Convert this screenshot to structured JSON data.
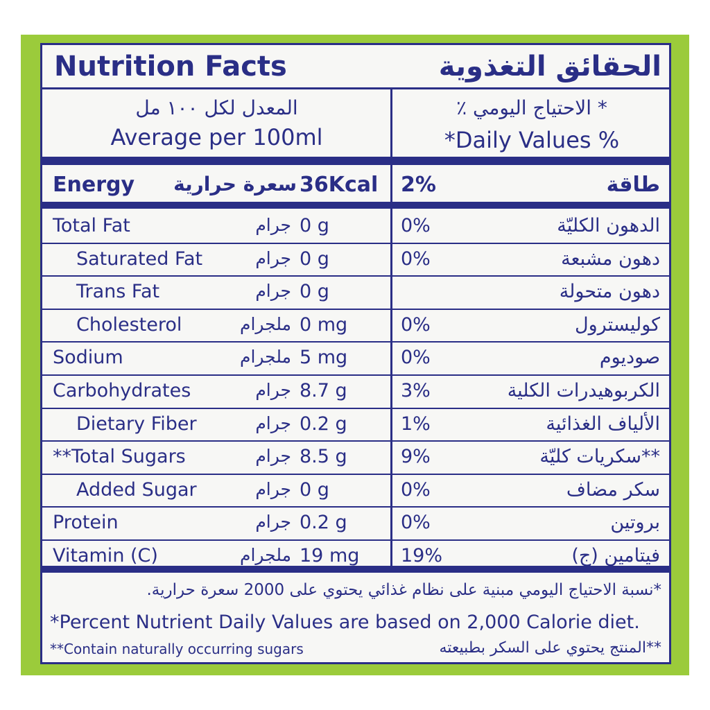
{
  "header": {
    "title_en": "Nutrition Facts",
    "title_ar": "الحقائق التغذوية"
  },
  "columns": {
    "left_ar": "المعدل لكل ١٠٠ مل",
    "left_en": "Average per 100ml",
    "right_ar": "* الاحتياج اليومي ٪",
    "right_en": "*Daily Values %"
  },
  "energy": {
    "en": "Energy",
    "unit_ar": "سعرة حرارية",
    "amount": "36Kcal",
    "dv": "2%",
    "ar": "طاقة"
  },
  "rows": [
    {
      "en": "Total Fat",
      "unit_ar": "جرام",
      "amount": "0 g",
      "dv": "0%",
      "ar": "الدهون الكليّة"
    },
    {
      "en": "Saturated Fat",
      "unit_ar": "جرام",
      "amount": "0 g",
      "dv": "0%",
      "ar": "دهون مشبعة",
      "indent": true
    },
    {
      "en": "Trans Fat",
      "unit_ar": "جرام",
      "amount": "0 g",
      "ar": "دهون متحولة",
      "indent": true
    },
    {
      "en": "Cholesterol",
      "unit_ar": "ملجرام",
      "amount": "0 mg",
      "dv": "0%",
      "ar": "كوليسترول",
      "indent": true
    },
    {
      "en": "Sodium",
      "unit_ar": "ملجرام",
      "amount": "5 mg",
      "dv": "0%",
      "ar": "صوديوم"
    },
    {
      "en": "Carbohydrates",
      "unit_ar": "جرام",
      "amount": "8.7 g",
      "dv": "3%",
      "ar": "الكربوهيدرات الكلية"
    },
    {
      "en": "Dietary Fiber",
      "unit_ar": "جرام",
      "amount": "0.2 g",
      "dv": "1%",
      "ar": "الألياف الغذائية",
      "indent": true
    },
    {
      "en": "**Total Sugars",
      "unit_ar": "جرام",
      "amount": "8.5 g",
      "dv": "9%",
      "ar": "**سكريات كليّة"
    },
    {
      "en": "Added Sugar",
      "unit_ar": "جرام",
      "amount": "0 g",
      "dv": "0%",
      "ar": "سكر مضاف",
      "indent": true
    },
    {
      "en": "Protein",
      "unit_ar": "جرام",
      "amount": "0.2 g",
      "dv": "0%",
      "ar": "بروتين"
    },
    {
      "en": "Vitamin (C)",
      "unit_ar": "ملجرام",
      "amount": "19 mg",
      "dv": "19%",
      "ar": "فيتامين (ج)"
    }
  ],
  "footnotes": {
    "ar1": "*نسبة الاحتياج اليومي مبنية على نظام غذائي يحتوي على 2000 سعرة حرارية.",
    "en1": "*Percent Nutrient Daily Values are based on 2,000 Calorie diet.",
    "en2": "**Contain naturally occurring sugars",
    "ar2": "**المنتج يحتوي على السكر بطبيعته"
  }
}
